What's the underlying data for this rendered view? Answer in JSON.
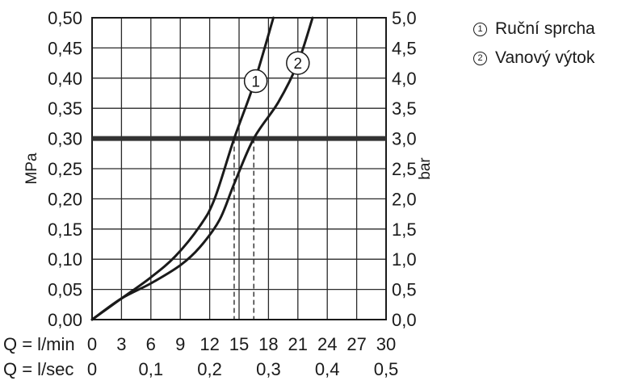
{
  "chart_data": {
    "type": "line",
    "x": [
      0,
      3,
      6,
      9,
      12,
      15,
      18,
      21,
      24,
      27,
      30
    ],
    "x_tick_labels": [
      "0",
      "3",
      "6",
      "9",
      "12",
      "15",
      "18",
      "21",
      "24",
      "27",
      "30"
    ],
    "x_row_label": "Q = l/min",
    "x2_tick_labels": [
      "0",
      "0,1",
      "0,2",
      "0,3",
      "0,4",
      "0,5"
    ],
    "x2_ticks": [
      0,
      6,
      12,
      18,
      24,
      30
    ],
    "x2_row_label": "Q = l/sec",
    "xlim": [
      0,
      30
    ],
    "ylim": [
      0,
      0.5
    ],
    "y_ticks": [
      0,
      0.05,
      0.1,
      0.15,
      0.2,
      0.25,
      0.3,
      0.35,
      0.4,
      0.45,
      0.5
    ],
    "y_tick_labels": [
      "0,00",
      "0,05",
      "0,10",
      "0,15",
      "0,20",
      "0,25",
      "0,30",
      "0,35",
      "0,40",
      "0,45",
      "0,50"
    ],
    "ylabel": "MPa",
    "y2_tick_labels": [
      "0,0",
      "0,5",
      "1,0",
      "1,5",
      "2,0",
      "2,5",
      "3,0",
      "3,5",
      "4,0",
      "4,5",
      "5,0"
    ],
    "y2label": "bar",
    "grid": true,
    "reference_line": {
      "y": 0.3
    },
    "series": [
      {
        "name": "Ruční sprcha",
        "marker": "1",
        "points": [
          [
            0,
            0
          ],
          [
            3,
            0.035
          ],
          [
            6,
            0.07
          ],
          [
            8.5,
            0.105
          ],
          [
            11,
            0.155
          ],
          [
            12.5,
            0.2
          ],
          [
            14.5,
            0.3
          ],
          [
            16.5,
            0.39
          ],
          [
            18.5,
            0.5
          ]
        ]
      },
      {
        "name": "Vanový výtok",
        "marker": "2",
        "points": [
          [
            0,
            0
          ],
          [
            3,
            0.035
          ],
          [
            6,
            0.06
          ],
          [
            9,
            0.09
          ],
          [
            11,
            0.12
          ],
          [
            13,
            0.165
          ],
          [
            14.5,
            0.225
          ],
          [
            16.5,
            0.3
          ],
          [
            19,
            0.36
          ],
          [
            21,
            0.425
          ],
          [
            22.5,
            0.5
          ]
        ]
      }
    ],
    "dashed_markers": [
      14.5,
      16.5
    ]
  }
}
